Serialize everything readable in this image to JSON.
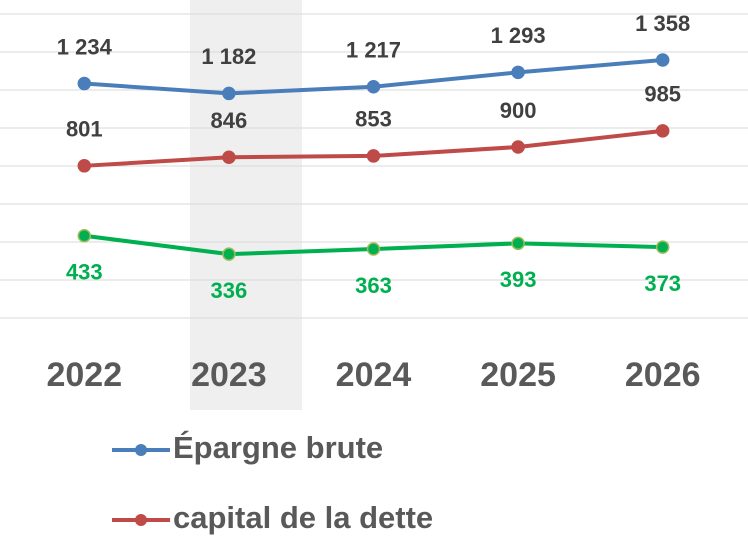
{
  "chart_data": {
    "type": "line",
    "categories": [
      "2022",
      "2023",
      "2024",
      "2025",
      "2026"
    ],
    "series": [
      {
        "name": "Épargne brute",
        "color": "#4a7ebb",
        "values": [
          1234,
          1182,
          1217,
          1293,
          1358
        ],
        "value_labels": [
          "1 234",
          "1 182",
          "1 217",
          "1 293",
          "1 358"
        ],
        "label_position": "above"
      },
      {
        "name": "capital de la dette",
        "color": "#be4b48",
        "values": [
          801,
          846,
          853,
          900,
          985
        ],
        "label_position": "above"
      },
      {
        "color": "#00b050",
        "values": [
          433,
          336,
          363,
          393,
          373
        ],
        "label_position": "below"
      }
    ],
    "ylim": [
      0,
      1600
    ],
    "yticks": [
      0,
      200,
      400,
      600,
      800,
      1000,
      1200,
      1400,
      1600
    ],
    "grid": true
  }
}
